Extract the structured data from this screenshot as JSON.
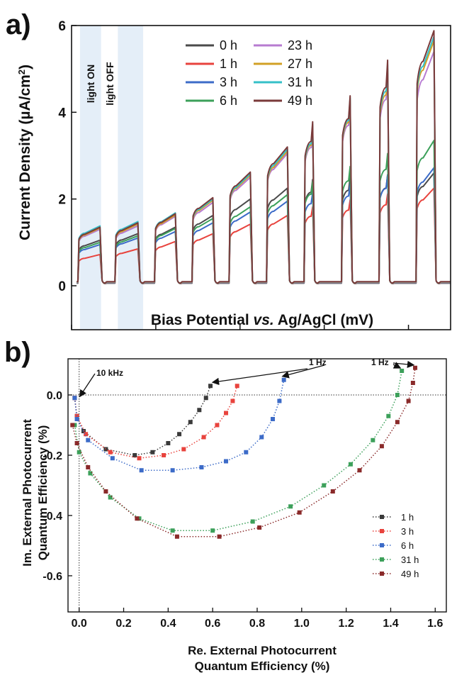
{
  "chart_data": [
    {
      "type": "line",
      "panel_label": "a)",
      "xlabel_parts": [
        "Bias Potential ",
        "vs.",
        " Ag/AgCl (mV)"
      ],
      "ylabel": "Current Density (µA/cm²)",
      "ylabel_parts": [
        "Current Density (µA/cm",
        "2",
        ")"
      ],
      "xlim": [
        -600,
        300
      ],
      "ylim": [
        -1,
        6
      ],
      "xticks": [
        "-600",
        "-400",
        "-200",
        "0",
        "200"
      ],
      "xtick_values": [
        -600,
        -400,
        -200,
        0,
        200
      ],
      "yticks": [
        "0",
        "2",
        "4",
        "6"
      ],
      "ytick_values": [
        0,
        2,
        4,
        6
      ],
      "legend_placement": "top-center",
      "annotations": [
        "light ON",
        "light OFF"
      ],
      "shaded_regions": [
        [
          -580,
          -530
        ],
        [
          -490,
          -430
        ]
      ],
      "light_on_start": [
        -585,
        -497,
        -403,
        -314,
        -226,
        -137,
        -48,
        41,
        130,
        218
      ],
      "light_on_end": [
        -530,
        -440,
        -351,
        -262,
        -173,
        -85,
        -25,
        64,
        153,
        263
      ],
      "plateau_end_all": [
        1.42,
        1.52,
        1.72,
        2.05,
        2.6,
        3.2,
        3.8,
        4.4,
        5.2,
        5.9
      ],
      "series": [
        {
          "name": "0 h",
          "color": "#4a4a4a",
          "plateau_end": [
            1.05,
            1.2,
            1.35,
            1.62,
            2.0,
            2.25,
            2.45,
            2.5,
            2.56,
            2.6
          ]
        },
        {
          "name": "1 h",
          "color": "#e8433d",
          "plateau_end": [
            0.72,
            0.85,
            1.02,
            1.2,
            1.42,
            1.62,
            1.82,
            1.98,
            2.12,
            2.25
          ]
        },
        {
          "name": "3 h",
          "color": "#3c6bc8",
          "plateau_end": [
            0.95,
            1.1,
            1.25,
            1.45,
            1.7,
            1.95,
            2.15,
            2.35,
            2.55,
            2.72
          ]
        },
        {
          "name": "6 h",
          "color": "#3ca05a",
          "plateau_end": [
            1.0,
            1.15,
            1.32,
            1.55,
            1.82,
            2.1,
            2.4,
            2.75,
            3.05,
            3.35
          ]
        },
        {
          "name": "23 h",
          "color": "#b77bd0",
          "plateau_end": [
            1.3,
            1.38,
            1.6,
            1.92,
            2.5,
            3.05,
            3.62,
            4.2,
            4.88,
            5.4
          ]
        },
        {
          "name": "27 h",
          "color": "#d2a025",
          "plateau_end": [
            1.33,
            1.42,
            1.63,
            1.97,
            2.55,
            3.1,
            3.68,
            4.28,
            5.0,
            5.65
          ]
        },
        {
          "name": "31 h",
          "color": "#35c0c8",
          "plateau_end": [
            1.38,
            1.48,
            1.68,
            2.0,
            2.58,
            3.15,
            3.72,
            4.33,
            5.1,
            5.75
          ]
        },
        {
          "name": "49 h",
          "color": "#7a3a3a",
          "plateau_end": [
            1.35,
            1.45,
            1.66,
            2.03,
            2.62,
            3.2,
            3.78,
            4.38,
            5.2,
            5.88
          ]
        }
      ]
    },
    {
      "type": "scatter",
      "panel_label": "b)",
      "xlabel_lines": [
        "Re. External Photocurrent",
        "Quantum Efficiency (%)"
      ],
      "ylabel_lines": [
        "Im. External Photocurrent",
        "Quantum Efficiency (%)"
      ],
      "xlim": [
        -0.05,
        1.65
      ],
      "ylim": [
        -0.72,
        0.12
      ],
      "xticks": [
        "0.0",
        "0.2",
        "0.4",
        "0.6",
        "0.8",
        "1.0",
        "1.2",
        "1.4",
        "1.6"
      ],
      "xtick_values": [
        0.0,
        0.2,
        0.4,
        0.6,
        0.8,
        1.0,
        1.2,
        1.4,
        1.6
      ],
      "yticks": [
        "0.0",
        "-0.2",
        "-0.4",
        "-0.6"
      ],
      "ytick_values": [
        0.0,
        -0.2,
        -0.4,
        -0.6
      ],
      "legend_placement": "bottom-right",
      "annotations": [
        "10 kHz",
        "1 Hz",
        "1 Hz"
      ],
      "series": [
        {
          "name": "1 h",
          "color": "#3a3a3a",
          "x": [
            -0.02,
            -0.01,
            0.02,
            0.12,
            0.25,
            0.33,
            0.4,
            0.45,
            0.5,
            0.54,
            0.57,
            0.59
          ],
          "y": [
            -0.01,
            -0.07,
            -0.12,
            -0.18,
            -0.2,
            -0.19,
            -0.16,
            -0.13,
            -0.09,
            -0.05,
            -0.01,
            0.03
          ]
        },
        {
          "name": "3 h",
          "color": "#e8433d",
          "x": [
            -0.02,
            -0.01,
            0.03,
            0.14,
            0.27,
            0.38,
            0.47,
            0.56,
            0.62,
            0.66,
            0.69,
            0.71
          ],
          "y": [
            -0.01,
            -0.07,
            -0.13,
            -0.19,
            -0.21,
            -0.2,
            -0.18,
            -0.14,
            -0.1,
            -0.06,
            -0.02,
            0.03
          ]
        },
        {
          "name": "6 h",
          "color": "#3c6bc8",
          "x": [
            -0.02,
            -0.01,
            0.04,
            0.15,
            0.28,
            0.42,
            0.55,
            0.66,
            0.75,
            0.82,
            0.87,
            0.9,
            0.92
          ],
          "y": [
            -0.01,
            -0.08,
            -0.15,
            -0.21,
            -0.25,
            -0.25,
            -0.24,
            -0.22,
            -0.19,
            -0.14,
            -0.08,
            -0.02,
            0.05
          ]
        },
        {
          "name": "31 h",
          "color": "#3ca05a",
          "x": [
            -0.02,
            0.0,
            0.05,
            0.14,
            0.27,
            0.42,
            0.6,
            0.78,
            0.95,
            1.1,
            1.22,
            1.32,
            1.39,
            1.43,
            1.45
          ],
          "y": [
            -0.1,
            -0.19,
            -0.26,
            -0.34,
            -0.41,
            -0.45,
            -0.45,
            -0.42,
            -0.37,
            -0.3,
            -0.23,
            -0.15,
            -0.07,
            0.0,
            0.08
          ]
        },
        {
          "name": "49 h",
          "color": "#8a2a2a",
          "x": [
            -0.03,
            -0.01,
            0.04,
            0.12,
            0.26,
            0.44,
            0.63,
            0.81,
            0.99,
            1.14,
            1.26,
            1.36,
            1.43,
            1.48,
            1.5,
            1.51
          ],
          "y": [
            -0.1,
            -0.16,
            -0.24,
            -0.32,
            -0.41,
            -0.47,
            -0.47,
            -0.44,
            -0.39,
            -0.32,
            -0.25,
            -0.17,
            -0.09,
            -0.02,
            0.04,
            0.09
          ]
        }
      ]
    }
  ]
}
